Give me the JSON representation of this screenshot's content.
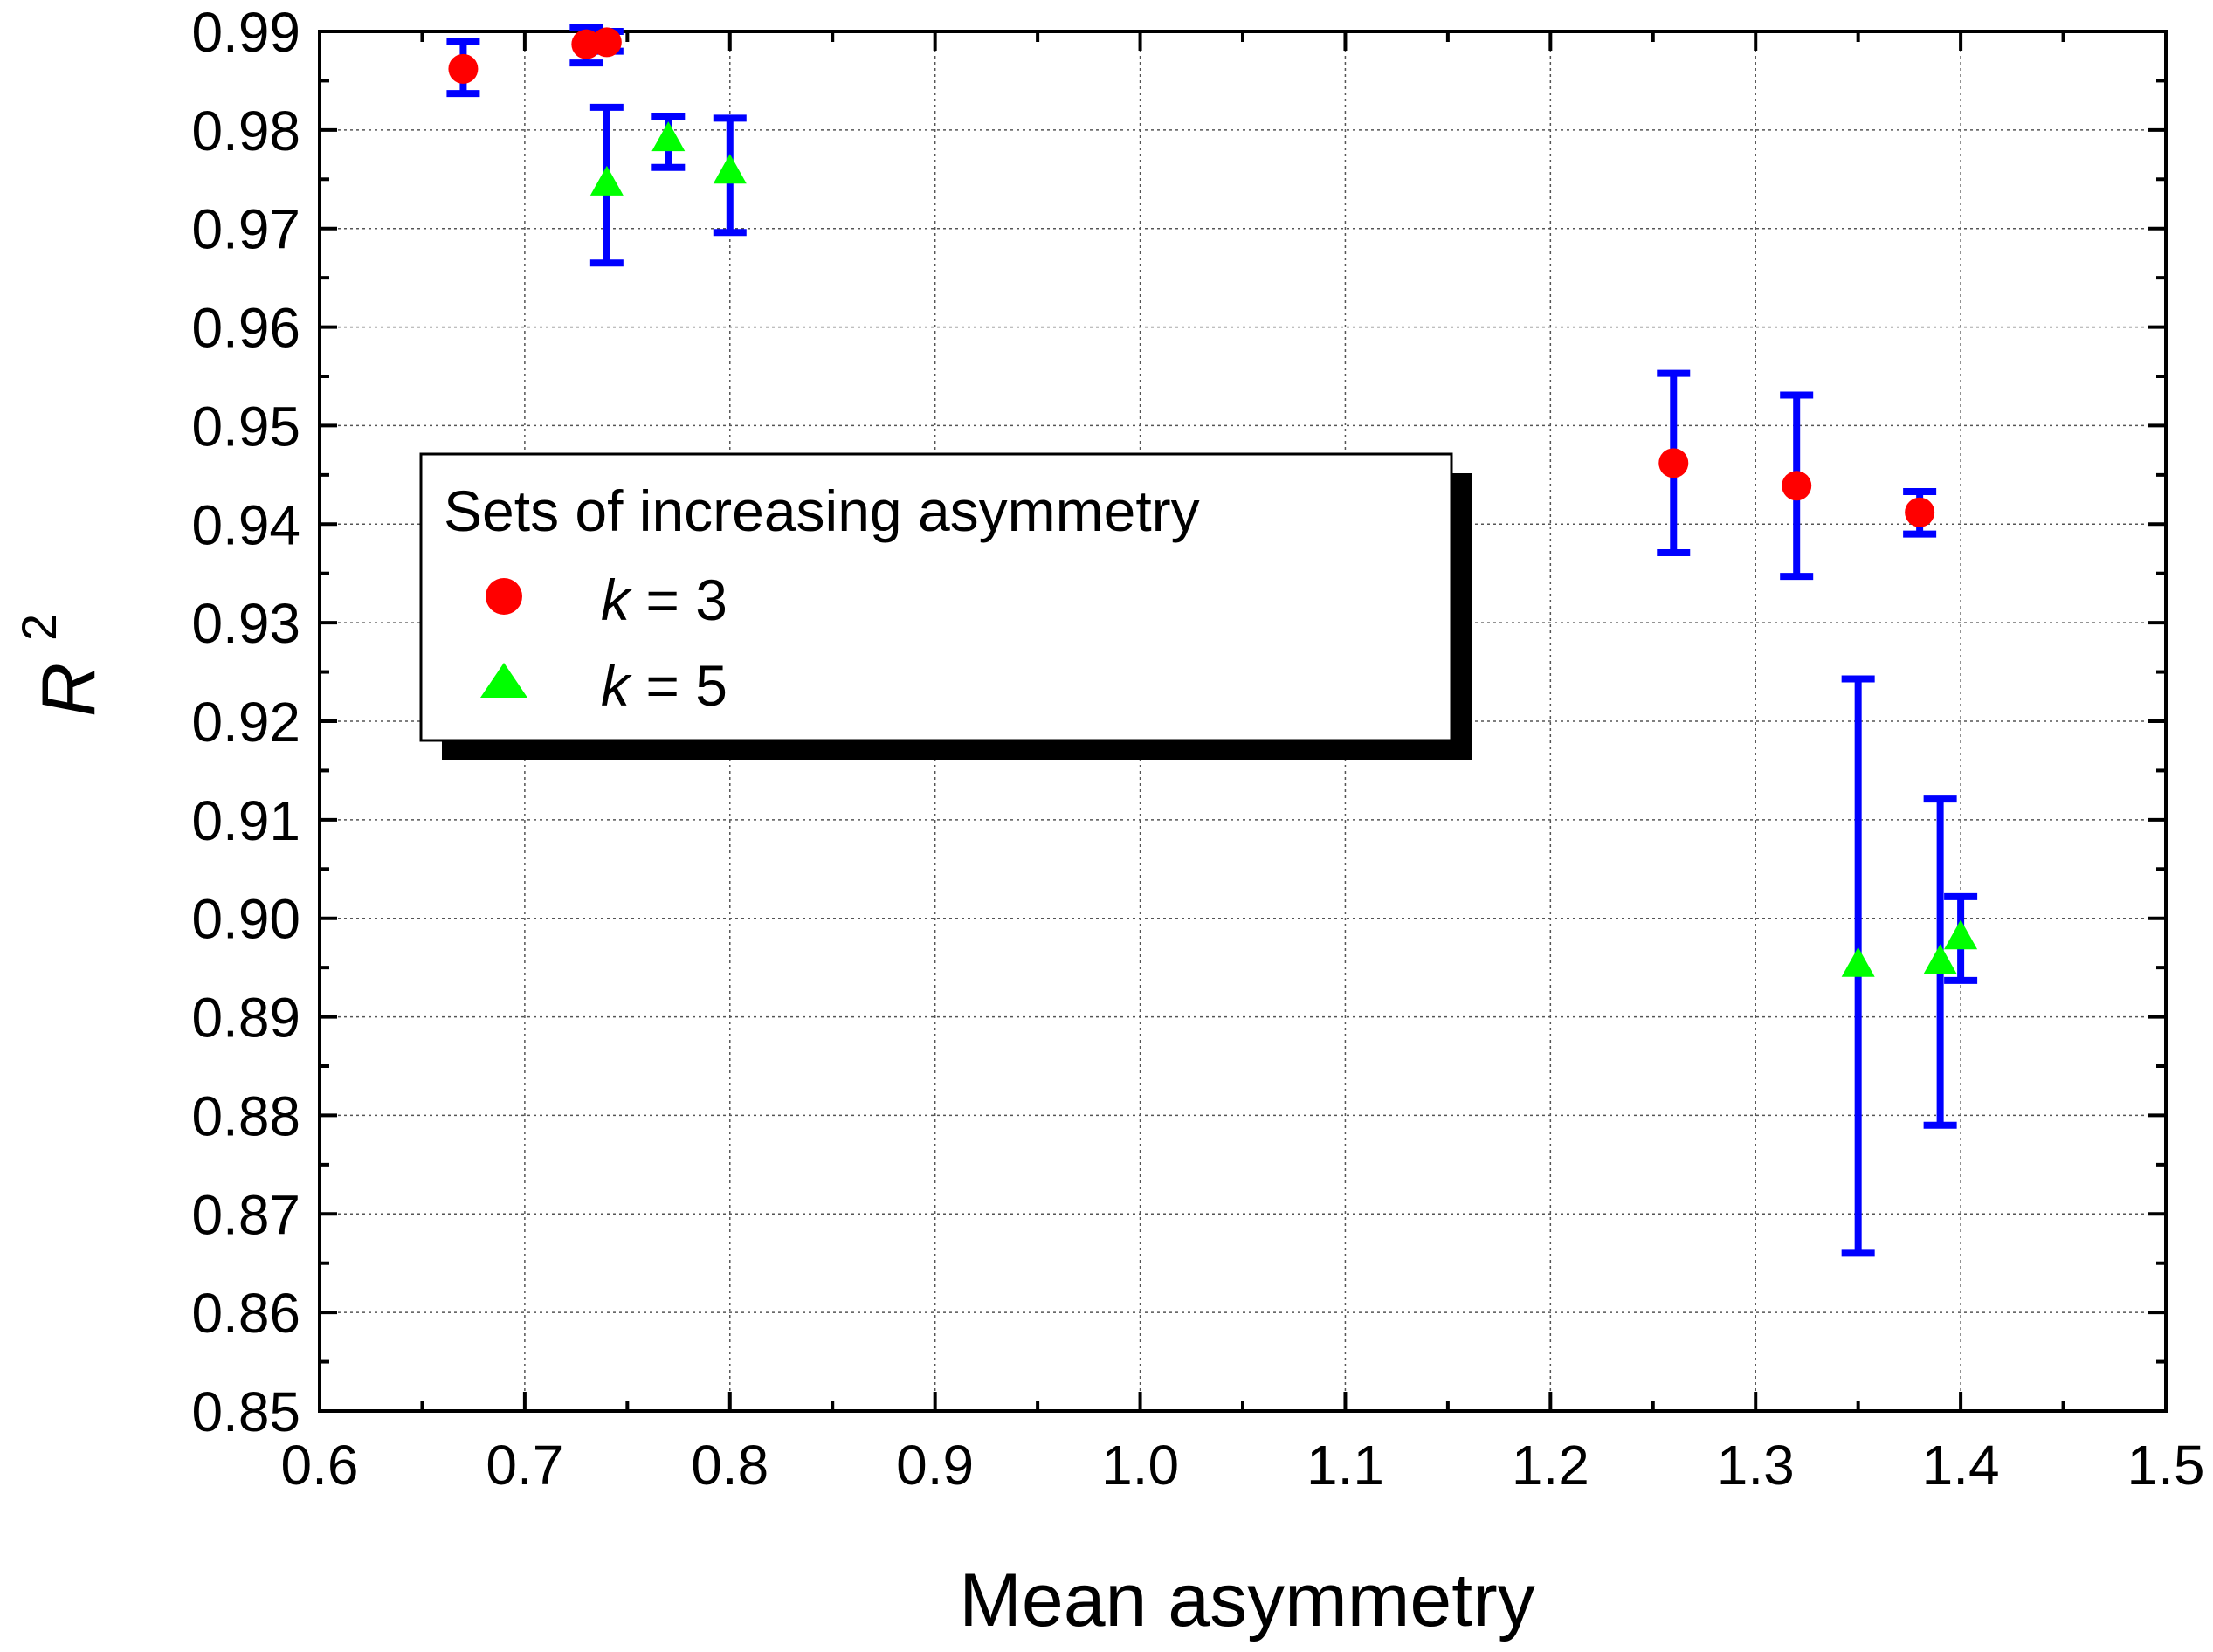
{
  "chart_data": {
    "type": "scatter",
    "title": "",
    "xlabel": "Mean asymmetry",
    "ylabel_main": "R",
    "ylabel_sup": "2",
    "xlim": [
      0.6,
      1.5
    ],
    "ylim": [
      0.85,
      0.99
    ],
    "xticks": [
      0.6,
      0.7,
      0.8,
      0.9,
      1.0,
      1.1,
      1.2,
      1.3,
      1.4,
      1.5
    ],
    "xtick_labels": [
      "0.6",
      "0.7",
      "0.8",
      "0.9",
      "1.0",
      "1.1",
      "1.2",
      "1.3",
      "1.4",
      "1.5"
    ],
    "yticks": [
      0.85,
      0.86,
      0.87,
      0.88,
      0.89,
      0.9,
      0.91,
      0.92,
      0.93,
      0.94,
      0.95,
      0.96,
      0.97,
      0.98,
      0.99
    ],
    "ytick_labels": [
      "0.85",
      "0.86",
      "0.87",
      "0.88",
      "0.89",
      "0.90",
      "0.91",
      "0.92",
      "0.93",
      "0.94",
      "0.95",
      "0.96",
      "0.97",
      "0.98",
      "0.99"
    ],
    "grid": true,
    "legend": {
      "title": "Sets of increasing asymmetry",
      "placement": "upper-left-center",
      "entries": [
        {
          "italic": "k",
          "rest": " = 3"
        },
        {
          "italic": "k",
          "rest": " = 5"
        }
      ]
    },
    "error_bar_color": "#0000ff",
    "series": [
      {
        "name": "k = 3",
        "marker": "circle",
        "color": "#ff0000",
        "points": [
          {
            "x": 0.67,
            "y": 0.9862,
            "lo": 0.9837,
            "hi": 0.989
          },
          {
            "x": 0.73,
            "y": 0.9887,
            "lo": 0.9868,
            "hi": 0.9904
          },
          {
            "x": 0.74,
            "y": 0.9889,
            "lo": 0.988,
            "hi": 0.99
          },
          {
            "x": 1.26,
            "y": 0.9462,
            "lo": 0.9371,
            "hi": 0.9553
          },
          {
            "x": 1.32,
            "y": 0.9439,
            "lo": 0.9347,
            "hi": 0.9531
          },
          {
            "x": 1.38,
            "y": 0.9412,
            "lo": 0.939,
            "hi": 0.9433
          }
        ]
      },
      {
        "name": "k = 5",
        "marker": "triangle",
        "color": "#00ff00",
        "points": [
          {
            "x": 0.74,
            "y": 0.9745,
            "lo": 0.9665,
            "hi": 0.9823
          },
          {
            "x": 0.77,
            "y": 0.979,
            "lo": 0.9762,
            "hi": 0.9814
          },
          {
            "x": 0.8,
            "y": 0.9757,
            "lo": 0.9696,
            "hi": 0.9812
          },
          {
            "x": 1.35,
            "y": 0.8952,
            "lo": 0.866,
            "hi": 0.9243
          },
          {
            "x": 1.39,
            "y": 0.8955,
            "lo": 0.879,
            "hi": 0.9121
          },
          {
            "x": 1.4,
            "y": 0.898,
            "lo": 0.8937,
            "hi": 0.9022
          }
        ]
      }
    ]
  }
}
